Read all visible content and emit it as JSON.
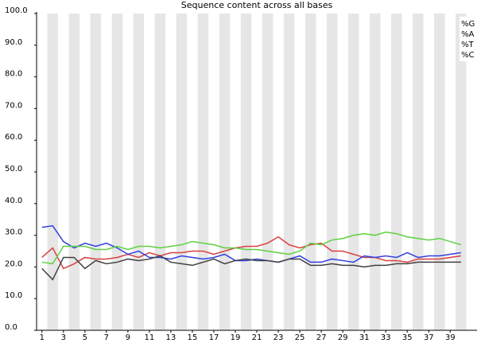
{
  "chart_data": {
    "type": "line",
    "title": "Sequence content across all bases",
    "x": [
      1,
      2,
      3,
      4,
      5,
      6,
      7,
      8,
      9,
      10,
      11,
      12,
      13,
      14,
      15,
      16,
      17,
      18,
      19,
      20,
      21,
      22,
      23,
      24,
      25,
      26,
      27,
      28,
      29,
      30,
      31,
      32,
      33,
      34,
      35,
      36,
      37,
      38,
      39,
      40
    ],
    "series": [
      {
        "name": "%G",
        "color": "#d94040",
        "values": [
          23,
          26,
          19.5,
          21,
          23,
          22.5,
          22.5,
          23,
          24,
          23,
          24.5,
          23.5,
          24.5,
          24.5,
          25,
          25,
          24,
          25,
          26,
          26.5,
          26.5,
          27.5,
          29.5,
          27,
          26,
          27,
          27.5,
          25,
          25,
          24,
          23,
          23,
          22,
          22,
          21.5,
          22.5,
          22.5,
          22.5,
          23,
          23.5
        ]
      },
      {
        "name": "%A",
        "color": "#3040e0",
        "values": [
          32.5,
          33,
          28,
          26,
          27.5,
          26.5,
          27.5,
          26,
          24,
          25,
          23,
          23,
          22.5,
          23.5,
          23,
          22.5,
          23,
          24,
          22,
          22,
          22.5,
          22,
          21.5,
          22.5,
          23.5,
          21.5,
          21.5,
          22.5,
          22,
          21.5,
          23.5,
          23,
          23.5,
          23,
          24.5,
          23,
          23.5,
          23.5,
          24,
          24.5
        ]
      },
      {
        "name": "%T",
        "color": "#60d040",
        "values": [
          21.5,
          21,
          26.5,
          26.5,
          26.5,
          25.5,
          25.5,
          26.5,
          25.5,
          26.5,
          26.5,
          26,
          26.5,
          27,
          28,
          27.5,
          27,
          26,
          26,
          25.5,
          25.5,
          25,
          24.5,
          24,
          25,
          27.5,
          27,
          28.5,
          29,
          30,
          30.5,
          30,
          31,
          30.5,
          29.5,
          29,
          28.5,
          29,
          28,
          27
        ]
      },
      {
        "name": "%C",
        "color": "#404040",
        "values": [
          19.5,
          16,
          23,
          23,
          19.5,
          22,
          21,
          21.5,
          22.5,
          22,
          22.5,
          23.5,
          21.5,
          21,
          20.5,
          21.5,
          22.5,
          21,
          22,
          22.5,
          22,
          22,
          21.5,
          22.5,
          22.5,
          20.5,
          20.5,
          21,
          20.5,
          20.5,
          20,
          20.5,
          20.5,
          21,
          21,
          21.5,
          21.5,
          21.5,
          21.5,
          21.5
        ]
      }
    ],
    "xlim": [
      0.5,
      41.5
    ],
    "xticks": [
      1,
      3,
      5,
      7,
      9,
      11,
      13,
      15,
      17,
      19,
      21,
      23,
      25,
      27,
      29,
      31,
      33,
      35,
      37,
      39
    ],
    "ylim": [
      0,
      100
    ],
    "yticks": [
      {
        "value": 0,
        "label": "0.0"
      },
      {
        "value": 10,
        "label": "10.0"
      },
      {
        "value": 20,
        "label": "20.0"
      },
      {
        "value": 30,
        "label": "30.0"
      },
      {
        "value": 40,
        "label": "40.0"
      },
      {
        "value": 50,
        "label": "50.0"
      },
      {
        "value": 60,
        "label": "60.0"
      },
      {
        "value": 70,
        "label": "70.0"
      },
      {
        "value": 80,
        "label": "80.0"
      },
      {
        "value": 90,
        "label": "90.0"
      },
      {
        "value": 100,
        "label": "100.0"
      }
    ],
    "legend": "top-right"
  }
}
